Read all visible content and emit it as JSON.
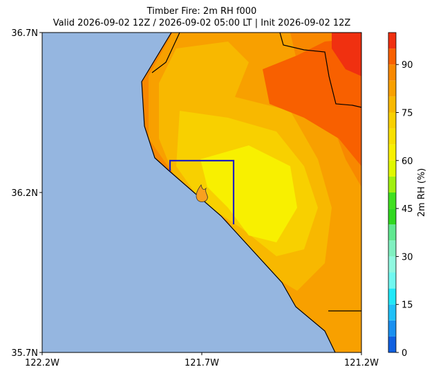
{
  "title": "Timber Fire: 2m RH f000",
  "subtitle": "Valid 2026-09-02 12Z / 2026-09-02 05:00 LT | Init 2026-09-02 12Z",
  "map": {
    "xlim": [
      -122.2,
      -121.2
    ],
    "ylim": [
      35.7,
      36.7
    ],
    "xticks": [
      {
        "value": -122.2,
        "label": "122.2W"
      },
      {
        "value": -121.7,
        "label": "121.7W"
      },
      {
        "value": -121.2,
        "label": "121.2W"
      }
    ],
    "yticks": [
      {
        "value": 35.7,
        "label": "35.7N"
      },
      {
        "value": 36.2,
        "label": "36.2N"
      },
      {
        "value": 36.7,
        "label": "36.7N"
      }
    ]
  },
  "colorbar": {
    "label": "2m RH (%)",
    "lim": [
      0,
      100
    ],
    "ticks": [
      0,
      15,
      30,
      45,
      60,
      75,
      90
    ],
    "levels": [
      0,
      5,
      10,
      15,
      20,
      25,
      30,
      35,
      40,
      45,
      50,
      55,
      60,
      65,
      70,
      75,
      80,
      85,
      90,
      95,
      100
    ],
    "colors": [
      "#1060e0",
      "#1a90f0",
      "#20c0f8",
      "#20e8f8",
      "#70f8f0",
      "#90f8e0",
      "#80f0c0",
      "#60e890",
      "#30d820",
      "#40e020",
      "#a0f010",
      "#e0f800",
      "#f8f000",
      "#f8e000",
      "#f8d000",
      "#f8b800",
      "#f8a000",
      "#f88800",
      "#f86000",
      "#f03010"
    ]
  }
}
